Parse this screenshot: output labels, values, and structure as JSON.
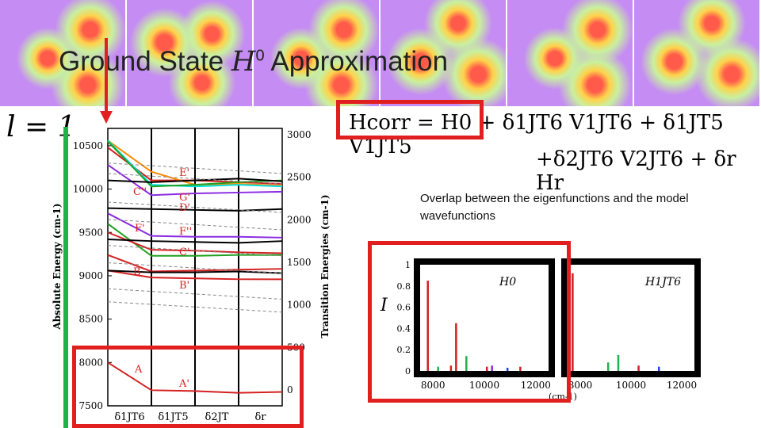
{
  "header": {
    "title_prefix": "Ground State ",
    "title_symbol": "H",
    "title_symbol_sup": "0",
    "title_suffix": " Approximation"
  },
  "l_label": "l = 1",
  "hamiltonian": {
    "line1": "Hcorr = H0 + δ1JT6 V1JT6 + δ1JT5 V1JT5",
    "line2": "+δ2JT6 V2JT6 + δr Hr"
  },
  "overlap_caption": "Overlap between the eigenfunctions and the model wavefunctions",
  "colors": {
    "accent_red": "#e21f1f",
    "bar_green": "#1db34a"
  },
  "chart_data": [
    {
      "type": "line",
      "title": "",
      "ylabel": "Absolute Energy (cm-1)",
      "y2label": "Transition Energies (cm-1)",
      "ylim": [
        7500,
        10700
      ],
      "yticks": [
        7500,
        8000,
        8500,
        9000,
        9500,
        10000,
        10500
      ],
      "y2ticks": [
        0,
        500,
        1000,
        1500,
        2000,
        2500,
        3000
      ],
      "xlabels": [
        "δ1JT6",
        "δ1JT5",
        "δ2JT",
        "δr"
      ],
      "annotations": [
        "E'",
        "C''",
        "G'",
        "D'",
        "F'",
        "F''",
        "C'",
        "B",
        "B'",
        "A",
        "A'"
      ],
      "series": [
        {
          "color": "#d42020",
          "values": [
            10480,
            10100,
            10100,
            10080,
            10060
          ]
        },
        {
          "color": "#ff8a00",
          "values": [
            10560,
            10200,
            10050,
            10060,
            10040
          ]
        },
        {
          "color": "#00e0e0",
          "values": [
            10560,
            10050,
            10030,
            10050,
            10030
          ]
        },
        {
          "color": "#20a020",
          "values": [
            10550,
            10030,
            10050,
            10080,
            10100
          ]
        },
        {
          "color": "#8a2be2",
          "values": [
            10280,
            9930,
            9950,
            9960,
            9970
          ]
        },
        {
          "color": "#8a2be2",
          "values": [
            9720,
            9460,
            9450,
            9450,
            9440
          ]
        },
        {
          "color": "#20a020",
          "values": [
            9600,
            9230,
            9230,
            9240,
            9240
          ]
        },
        {
          "color": "#d42020",
          "values": [
            9500,
            9300,
            9290,
            9270,
            9260
          ]
        },
        {
          "color": "#d42020",
          "values": [
            9240,
            9050,
            9060,
            9070,
            9080
          ]
        },
        {
          "color": "#d42020",
          "values": [
            9060,
            8980,
            8970,
            8960,
            8960
          ]
        },
        {
          "color": "#d42020",
          "values": [
            8000,
            7680,
            7670,
            7650,
            7660
          ]
        },
        {
          "color": "#000000",
          "values": [
            10100,
            10080,
            10100,
            10120,
            10090
          ]
        },
        {
          "color": "#000000",
          "values": [
            9780,
            9770,
            9760,
            9750,
            9770
          ]
        },
        {
          "color": "#000000",
          "values": [
            9420,
            9400,
            9390,
            9380,
            9400
          ]
        },
        {
          "color": "#000000",
          "values": [
            9060,
            9040,
            9040,
            9050,
            9030
          ]
        }
      ]
    },
    {
      "type": "bar",
      "title": "",
      "panel_label": "H0",
      "ylabel": "I",
      "xlabel": "(cm-1)",
      "xlim": [
        7500,
        12500
      ],
      "xticks": [
        8000,
        10000,
        12000
      ],
      "ylim": [
        0,
        1
      ],
      "yticks": [
        0,
        0.2,
        0.4,
        0.6,
        0.8,
        1
      ],
      "points": [
        {
          "x": 7800,
          "y": 0.85,
          "color": "#d42020"
        },
        {
          "x": 8200,
          "y": 0.04,
          "color": "#1db34a"
        },
        {
          "x": 8900,
          "y": 0.45,
          "color": "#d42020"
        },
        {
          "x": 8700,
          "y": 0.05,
          "color": "#d42020"
        },
        {
          "x": 9300,
          "y": 0.14,
          "color": "#1db34a"
        },
        {
          "x": 10100,
          "y": 0.04,
          "color": "#d42020"
        },
        {
          "x": 10300,
          "y": 0.05,
          "color": "#8a2be2"
        },
        {
          "x": 10900,
          "y": 0.03,
          "color": "#2040ff"
        },
        {
          "x": 11400,
          "y": 0.04,
          "color": "#d42020"
        }
      ]
    },
    {
      "type": "bar",
      "title": "",
      "panel_label": "H1JT6",
      "xlim": [
        7500,
        12500
      ],
      "xticks": [
        8000,
        10000,
        12000
      ],
      "ylim": [
        0,
        1
      ],
      "points": [
        {
          "x": 7700,
          "y": 0.92,
          "color": "#d42020"
        },
        {
          "x": 9100,
          "y": 0.08,
          "color": "#1db34a"
        },
        {
          "x": 9500,
          "y": 0.15,
          "color": "#1db34a"
        },
        {
          "x": 10300,
          "y": 0.05,
          "color": "#d42020"
        },
        {
          "x": 11100,
          "y": 0.04,
          "color": "#2040ff"
        }
      ]
    }
  ]
}
